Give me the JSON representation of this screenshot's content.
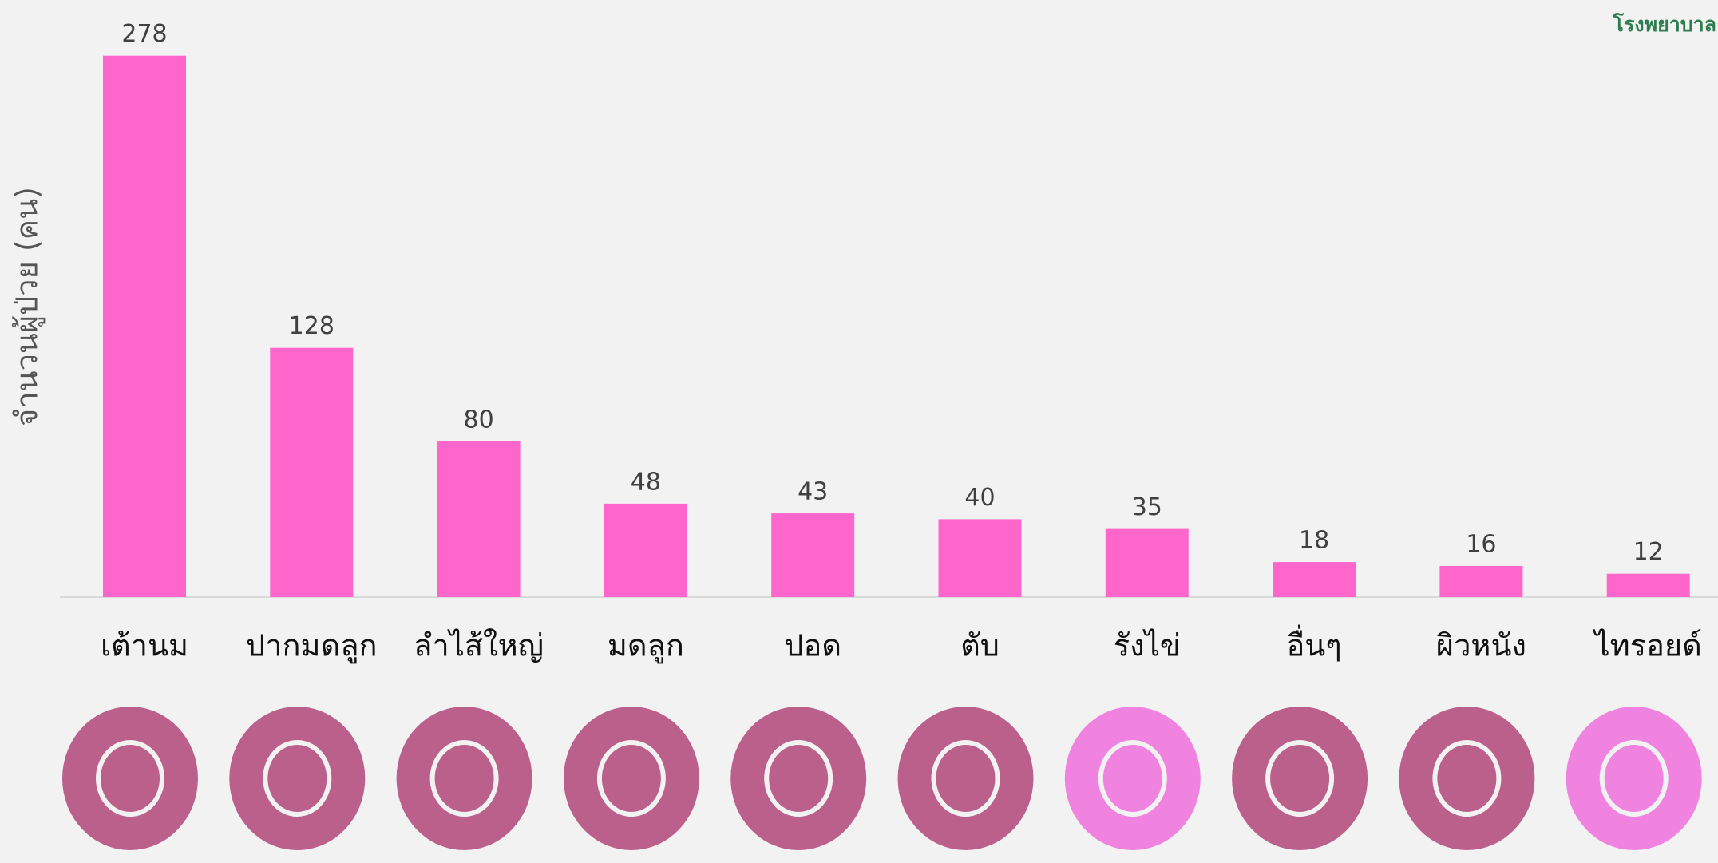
{
  "chart_data": {
    "type": "bar",
    "y_label": "จำนวนผู้ป่วย (คน)",
    "corner_label": "โรงพยาบาล",
    "categories": [
      "เต้านม",
      "ปากมดลูก",
      "ลำไส้ใหญ่",
      "มดลูก",
      "ปอด",
      "ตับ",
      "รังไข่",
      "อื่นๆ",
      "ผิวหนัง",
      "ไทรอยด์"
    ],
    "values": [
      278,
      128,
      80,
      48,
      43,
      40,
      35,
      18,
      16,
      12
    ],
    "color": "#ff66cc",
    "ylim": [
      0,
      300
    ]
  }
}
